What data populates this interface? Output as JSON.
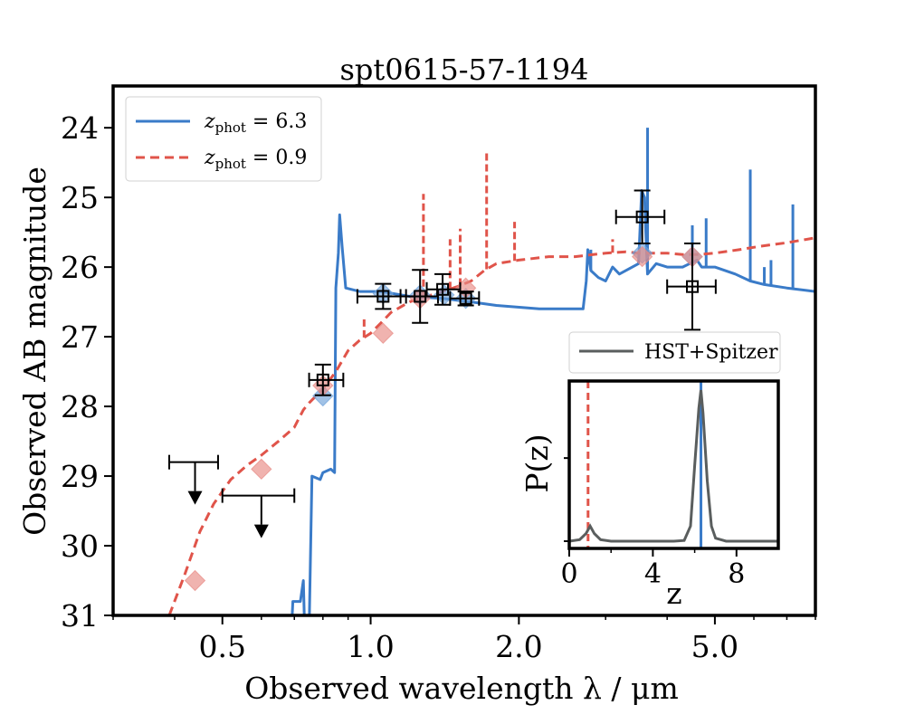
{
  "chart_data": [
    {
      "type": "line",
      "title": "spt0615-57-1194",
      "xlabel": "Observed wavelength λ / μm",
      "ylabel": "Observed AB magnitude",
      "xscale": "log",
      "xlim": [
        0.3,
        8.0
      ],
      "ylim": [
        31,
        23.4
      ],
      "y_inverted": true,
      "x_ticks": [
        0.5,
        1.0,
        2.0,
        5.0
      ],
      "x_tick_labels": [
        "0.5",
        "1.0",
        "2.0",
        "5.0"
      ],
      "y_ticks": [
        24,
        25,
        26,
        27,
        28,
        29,
        30,
        31
      ],
      "y_tick_labels": [
        "24",
        "25",
        "26",
        "27",
        "28",
        "29",
        "30",
        "31"
      ],
      "legend_position": "top-left",
      "series": [
        {
          "name": "z_phot = 6.3",
          "legend_prefix": "z",
          "legend_subscript": "phot",
          "legend_suffix": " = 6.3",
          "color": "#3a7bc8",
          "style": "solid",
          "points": [
            [
              0.69,
              31.3
            ],
            [
              0.695,
              30.8
            ],
            [
              0.72,
              30.8
            ],
            [
              0.73,
              30.5
            ],
            [
              0.735,
              31.3
            ],
            [
              0.74,
              31.3
            ],
            [
              0.75,
              31.2
            ],
            [
              0.76,
              29.0
            ],
            [
              0.79,
              29.05
            ],
            [
              0.8,
              28.95
            ],
            [
              0.83,
              28.9
            ],
            [
              0.845,
              28.95
            ],
            [
              0.85,
              26.3
            ],
            [
              0.86,
              25.8
            ],
            [
              0.865,
              25.25
            ],
            [
              0.875,
              25.7
            ],
            [
              0.89,
              26.3
            ],
            [
              0.95,
              26.35
            ],
            [
              1.05,
              26.35
            ],
            [
              1.2,
              26.42
            ],
            [
              1.4,
              26.45
            ],
            [
              1.6,
              26.5
            ],
            [
              1.8,
              26.55
            ],
            [
              2.2,
              26.6
            ],
            [
              2.7,
              26.6
            ],
            [
              2.74,
              26.2
            ],
            [
              2.76,
              25.75
            ],
            [
              2.8,
              26.05
            ],
            [
              2.9,
              26.15
            ],
            [
              3.0,
              26.2
            ],
            [
              3.1,
              26.0
            ],
            [
              3.2,
              26.1
            ],
            [
              3.5,
              25.95
            ],
            [
              3.55,
              24.9
            ],
            [
              3.6,
              25.0
            ],
            [
              3.62,
              25.5
            ],
            [
              3.65,
              26.1
            ],
            [
              3.8,
              25.95
            ],
            [
              4.0,
              26.0
            ],
            [
              4.3,
              26.0
            ],
            [
              4.6,
              25.9
            ],
            [
              4.7,
              26.0
            ],
            [
              5.0,
              26.0
            ],
            [
              5.5,
              26.1
            ],
            [
              5.9,
              26.2
            ],
            [
              6.3,
              26.25
            ],
            [
              7.0,
              26.3
            ],
            [
              8.0,
              26.35
            ]
          ],
          "spikes": [
            [
              2.8,
              25.75
            ],
            [
              3.55,
              24.9
            ],
            [
              3.65,
              24.0
            ],
            [
              4.5,
              25.4
            ],
            [
              4.8,
              25.3
            ],
            [
              5.9,
              24.6
            ],
            [
              6.3,
              26.0
            ],
            [
              6.5,
              25.9
            ],
            [
              7.2,
              25.1
            ]
          ]
        },
        {
          "name": "z_phot = 0.9",
          "legend_prefix": "z",
          "legend_subscript": "phot",
          "legend_suffix": " = 0.9",
          "color": "#e0544a",
          "style": "dashed",
          "points": [
            [
              0.39,
              31.0
            ],
            [
              0.42,
              30.4
            ],
            [
              0.45,
              29.8
            ],
            [
              0.48,
              29.4
            ],
            [
              0.52,
              29.05
            ],
            [
              0.56,
              28.85
            ],
            [
              0.6,
              28.7
            ],
            [
              0.65,
              28.5
            ],
            [
              0.7,
              28.3
            ],
            [
              0.73,
              28.05
            ],
            [
              0.75,
              27.95
            ],
            [
              0.8,
              27.75
            ],
            [
              0.85,
              27.5
            ],
            [
              0.9,
              27.2
            ],
            [
              0.95,
              27.05
            ],
            [
              1.0,
              26.95
            ],
            [
              1.05,
              26.8
            ],
            [
              1.1,
              26.65
            ],
            [
              1.2,
              26.5
            ],
            [
              1.3,
              26.42
            ],
            [
              1.4,
              26.35
            ],
            [
              1.5,
              26.28
            ],
            [
              1.6,
              26.2
            ],
            [
              1.7,
              26.05
            ],
            [
              1.8,
              25.95
            ],
            [
              2.0,
              25.9
            ],
            [
              2.3,
              25.85
            ],
            [
              2.6,
              25.85
            ],
            [
              3.0,
              25.8
            ],
            [
              3.3,
              25.78
            ],
            [
              3.5,
              25.8
            ],
            [
              4.0,
              25.8
            ],
            [
              4.3,
              25.82
            ],
            [
              4.6,
              25.82
            ],
            [
              5.0,
              25.8
            ],
            [
              5.6,
              25.75
            ],
            [
              6.2,
              25.7
            ],
            [
              7.0,
              25.65
            ],
            [
              8.0,
              25.58
            ]
          ],
          "spikes": [
            [
              0.97,
              26.75
            ],
            [
              1.28,
              24.95
            ],
            [
              1.45,
              25.6
            ],
            [
              1.52,
              25.45
            ],
            [
              1.72,
              24.35
            ],
            [
              1.96,
              25.35
            ],
            [
              3.1,
              25.6
            ]
          ]
        }
      ],
      "model_photometry": [
        {
          "name": "z=6.3 model",
          "color": "#6ea1d8",
          "points": [
            [
              0.8,
              27.85
            ],
            [
              1.06,
              26.38
            ],
            [
              1.26,
              26.4
            ],
            [
              1.41,
              26.4
            ],
            [
              1.56,
              26.45
            ],
            [
              3.56,
              25.8
            ],
            [
              4.5,
              25.85
            ]
          ]
        },
        {
          "name": "z=0.9 model",
          "color": "#e88a84",
          "points": [
            [
              0.44,
              30.5
            ],
            [
              0.6,
              28.9
            ],
            [
              0.8,
              27.7
            ],
            [
              1.06,
              26.95
            ],
            [
              1.26,
              26.45
            ],
            [
              1.56,
              26.3
            ],
            [
              3.56,
              25.85
            ],
            [
              4.5,
              25.85
            ]
          ]
        }
      ],
      "observed": [
        {
          "x": 0.8,
          "y": 27.62,
          "x_lo": 0.75,
          "x_hi": 0.88,
          "y_err": 0.22
        },
        {
          "x": 1.06,
          "y": 26.42,
          "x_lo": 0.94,
          "x_hi": 1.18,
          "y_err": 0.18
        },
        {
          "x": 1.26,
          "y": 26.42,
          "x_lo": 1.15,
          "x_hi": 1.37,
          "y_err": 0.38
        },
        {
          "x": 1.4,
          "y": 26.32,
          "x_lo": 1.3,
          "x_hi": 1.52,
          "y_err": 0.22
        },
        {
          "x": 1.56,
          "y": 26.45,
          "x_lo": 1.45,
          "x_hi": 1.66,
          "y_err": 0.1
        },
        {
          "x": 3.56,
          "y": 25.28,
          "x_lo": 3.15,
          "x_hi": 3.95,
          "y_err": 0.38
        },
        {
          "x": 4.5,
          "y": 26.28,
          "x_lo": 4.0,
          "x_hi": 5.02,
          "y_err": 0.62
        }
      ],
      "upper_limits": [
        {
          "x": 0.44,
          "y": 28.8,
          "x_lo": 0.39,
          "x_hi": 0.49
        },
        {
          "x": 0.6,
          "y": 29.28,
          "x_lo": 0.5,
          "x_hi": 0.7
        }
      ]
    },
    {
      "type": "line",
      "name": "inset",
      "xlabel": "z",
      "ylabel": "P(z)",
      "xlim": [
        0,
        10
      ],
      "x_ticks": [
        0,
        4,
        8
      ],
      "x_tick_labels": [
        "0",
        "4",
        "8"
      ],
      "series": [
        {
          "name": "HST+Spitzer",
          "color": "#5a5e5e",
          "points": [
            [
              0,
              0.0
            ],
            [
              0.5,
              0.01
            ],
            [
              0.8,
              0.05
            ],
            [
              1.0,
              0.1
            ],
            [
              1.2,
              0.05
            ],
            [
              1.5,
              0.01
            ],
            [
              2.0,
              0.0
            ],
            [
              4.0,
              0.0
            ],
            [
              5.0,
              0.0
            ],
            [
              5.5,
              0.005
            ],
            [
              5.8,
              0.1
            ],
            [
              6.0,
              0.5
            ],
            [
              6.2,
              0.88
            ],
            [
              6.3,
              1.0
            ],
            [
              6.4,
              0.85
            ],
            [
              6.6,
              0.4
            ],
            [
              6.8,
              0.1
            ],
            [
              7.0,
              0.02
            ],
            [
              7.5,
              0.0
            ],
            [
              10.0,
              0.0
            ]
          ]
        }
      ],
      "vlines": [
        {
          "x": 0.9,
          "color": "#e0544a",
          "style": "dashed"
        },
        {
          "x": 6.3,
          "color": "#3a7bc8",
          "style": "solid"
        }
      ]
    }
  ]
}
